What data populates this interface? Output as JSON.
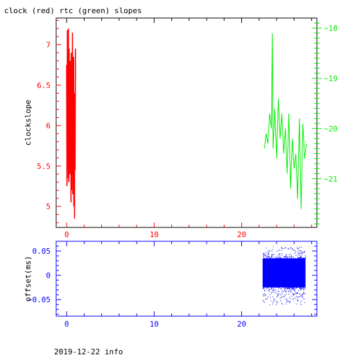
{
  "title": "clock (red) rtc (green) slopes",
  "footer": "2019-12-22 info",
  "colors": {
    "clock": "#ff0000",
    "rtc": "#00ee00",
    "offset": "#0000ff",
    "axis": "#000000"
  },
  "chart_data": [
    {
      "type": "line",
      "name": "slopes",
      "ylabel": "clockslope",
      "xlim": [
        -1.2,
        28.6
      ],
      "ylim": [
        4.74,
        7.33
      ],
      "y2lim": [
        -21.97,
        -17.8
      ],
      "x_ticks": [
        0,
        10,
        20
      ],
      "x_tick_labels": [
        "0",
        "10",
        "20"
      ],
      "y_ticks": [
        5,
        5.5,
        6,
        6.5,
        7
      ],
      "y_tick_labels": [
        "5",
        "5.5",
        "6",
        "6.5",
        "7"
      ],
      "y2_ticks": [
        -21,
        -20,
        -19,
        -18
      ],
      "y2_tick_labels": [
        "−21",
        "−20",
        "−19",
        "−18"
      ],
      "series": [
        {
          "name": "clock",
          "axis": "left",
          "x": [
            0.0,
            0.04,
            0.08,
            0.1,
            0.14,
            0.18,
            0.2,
            0.24,
            0.28,
            0.3,
            0.34,
            0.38,
            0.4,
            0.44,
            0.48,
            0.5,
            0.52,
            0.56,
            0.6,
            0.62,
            0.66,
            0.7,
            0.72,
            0.76,
            0.8,
            0.82,
            0.86,
            0.9,
            0.92,
            0.96,
            1.0
          ],
          "y": [
            6.75,
            5.25,
            7.18,
            5.6,
            6.9,
            5.35,
            7.2,
            5.3,
            6.95,
            5.6,
            6.7,
            5.4,
            6.8,
            5.5,
            6.2,
            5.05,
            6.9,
            5.2,
            6.5,
            5.4,
            7.15,
            5.15,
            6.6,
            5.35,
            6.85,
            5.0,
            6.4,
            4.85,
            6.2,
            5.45,
            6.95
          ]
        },
        {
          "name": "rtc",
          "axis": "right",
          "x": [
            22.6,
            22.8,
            23.0,
            23.2,
            23.4,
            23.5,
            23.6,
            23.8,
            24.0,
            24.2,
            24.4,
            24.6,
            24.8,
            25.0,
            25.2,
            25.4,
            25.6,
            25.8,
            26.0,
            26.2,
            26.4,
            26.6,
            26.8,
            27.0,
            27.2,
            27.4
          ],
          "y": [
            -20.4,
            -20.1,
            -20.3,
            -19.7,
            -20.0,
            -18.1,
            -20.4,
            -19.6,
            -20.6,
            -19.4,
            -20.2,
            -19.7,
            -20.5,
            -20.0,
            -20.9,
            -19.7,
            -21.2,
            -20.2,
            -20.8,
            -20.5,
            -21.4,
            -19.8,
            -21.6,
            -19.9,
            -20.6,
            -20.3
          ]
        }
      ]
    },
    {
      "type": "scatter",
      "name": "offset",
      "ylabel": "offset(ms)",
      "xlim": [
        -1.2,
        28.6
      ],
      "ylim": [
        -0.084,
        0.07
      ],
      "x_ticks": [
        0,
        10,
        20
      ],
      "x_tick_labels": [
        "0",
        "10",
        "20"
      ],
      "y_ticks": [
        -0.05,
        0,
        0.05
      ],
      "y_tick_labels": [
        "−0.05",
        "0",
        "0.05"
      ],
      "band": {
        "x_range": [
          22.4,
          27.3
        ],
        "dense_y": [
          -0.025,
          0.035
        ],
        "sparse_y": [
          -0.06,
          0.06
        ]
      }
    }
  ]
}
